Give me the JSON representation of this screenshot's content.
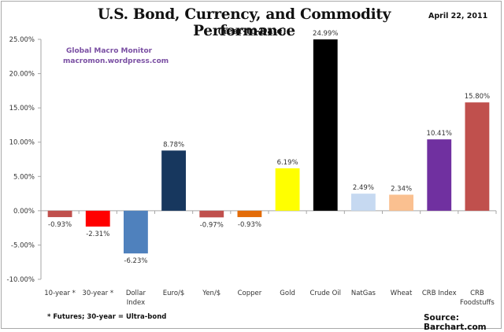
{
  "header": {
    "title": "U.S. Bond, Currency, and Commodity Performance",
    "subtitle": "(Year-to-Date)",
    "date": "April 22, 2011"
  },
  "watermark": {
    "line1": "Global Macro Monitor",
    "line2": "macromon.wordpress.com"
  },
  "footer": {
    "footnote": "* Futures; 30-year = Ultra-bond",
    "source": "Source:  Barchart.com"
  },
  "chart_data": {
    "type": "bar",
    "title": "U.S. Bond, Currency, and Commodity Performance",
    "subtitle": "(Year-to-Date)",
    "xlabel": "",
    "ylabel": "",
    "ylim": [
      -10,
      25
    ],
    "yticks": [
      25,
      20,
      15,
      10,
      5,
      0,
      -5,
      -10
    ],
    "ytick_labels": [
      "25.00%",
      "20.00%",
      "15.00%",
      "10.00%",
      "5.00%",
      "0.00%",
      "-5.00%",
      "-10.00%"
    ],
    "grid": false,
    "legend": "none",
    "categories": [
      [
        "10-year *"
      ],
      [
        "30-year *"
      ],
      [
        "Dollar",
        "Index"
      ],
      [
        "Euro/$"
      ],
      [
        "Yen/$"
      ],
      [
        "Copper"
      ],
      [
        "Gold"
      ],
      [
        "Crude Oil"
      ],
      [
        "NatGas"
      ],
      [
        "Wheat"
      ],
      [
        "CRB Index"
      ],
      [
        "CRB",
        "Foodstuffs"
      ]
    ],
    "values": [
      -0.93,
      -2.31,
      -6.23,
      8.78,
      -0.97,
      -0.93,
      6.19,
      24.99,
      2.49,
      2.34,
      10.41,
      15.8
    ],
    "data_labels": [
      "-0.93%",
      "-2.31%",
      "-6.23%",
      "8.78%",
      "-0.97%",
      "-0.93%",
      "6.19%",
      "24.99%",
      "2.49%",
      "2.34%",
      "10.41%",
      "15.80%"
    ],
    "colors": [
      "#c0504d",
      "#ff0000",
      "#4f81bd",
      "#17375e",
      "#c0504d",
      "#e36c09",
      "#ffff00",
      "#000000",
      "#c6d9f1",
      "#fac090",
      "#7030a0",
      "#c0504d"
    ]
  }
}
